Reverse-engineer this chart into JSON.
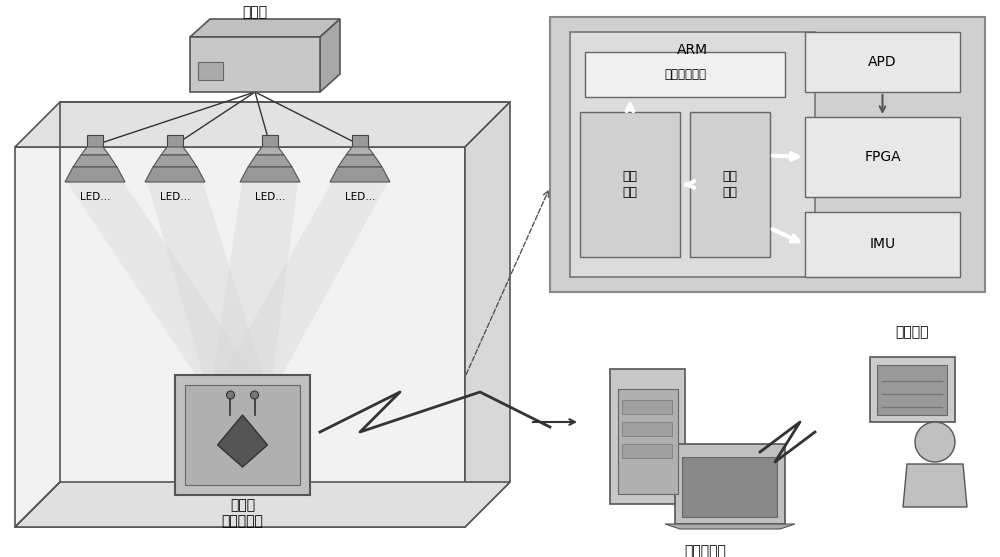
{
  "bg_color": "#ffffff",
  "text_color": "#000000",
  "title_controller": "控制器",
  "title_node": "百节点\n（接收器）",
  "title_server": "定位服务器",
  "title_user": "用户终端",
  "title_arm": "ARM",
  "title_wireless": "无线通信模块",
  "title_data": "数据\n处理",
  "title_interface": "串口\n模块",
  "title_apd": "APD",
  "title_fpga": "FPGA",
  "title_imu": "IMU",
  "led_label": "LED…"
}
